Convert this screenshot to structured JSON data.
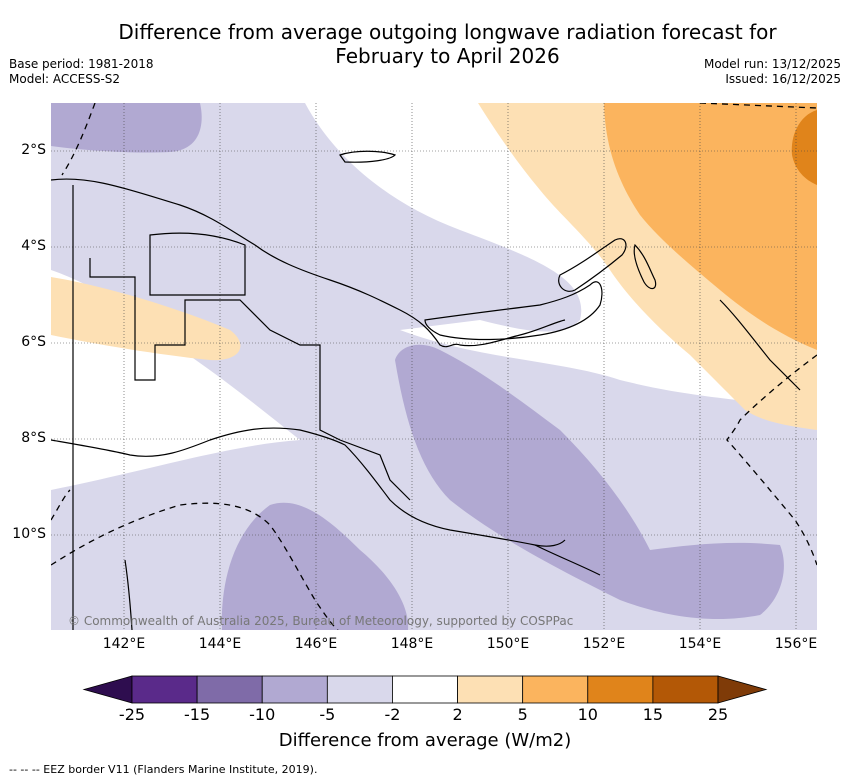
{
  "title": "Difference from average outgoing longwave radiation forecast for February to April 2026",
  "base_period": "Base period: 1981-2018",
  "model": "Model: ACCESS-S2",
  "model_run": "Model run: 13/12/2025",
  "issued": "Issued: 16/12/2025",
  "copyright": "© Commonwealth of Australia 2025, Bureau of Meteorology, supported by COSPPac",
  "longitude_labels": [
    "142°E",
    "144°E",
    "146°E",
    "148°E",
    "150°E",
    "152°E",
    "154°E",
    "156°E"
  ],
  "latitude_labels": [
    "2°S",
    "4°S",
    "6°S",
    "8°S",
    "10°S"
  ],
  "colorbar": {
    "ticks": [
      "-25",
      "-15",
      "-10",
      "-5",
      "-2",
      "2",
      "5",
      "10",
      "15",
      "25"
    ],
    "colors": [
      "#2e0d4f",
      "#5a2a8a",
      "#7f6ba8",
      "#b1a9d2",
      "#d9d8eb",
      "#ffffff",
      "#fde0b4",
      "#fbb45e",
      "#e0841b",
      "#b35806",
      "#7f3b08"
    ],
    "label": "Difference from average (W/m2)"
  },
  "footnote": "--  --  -- EEZ border V11 (Flanders Marine Institute, 2019)."
}
